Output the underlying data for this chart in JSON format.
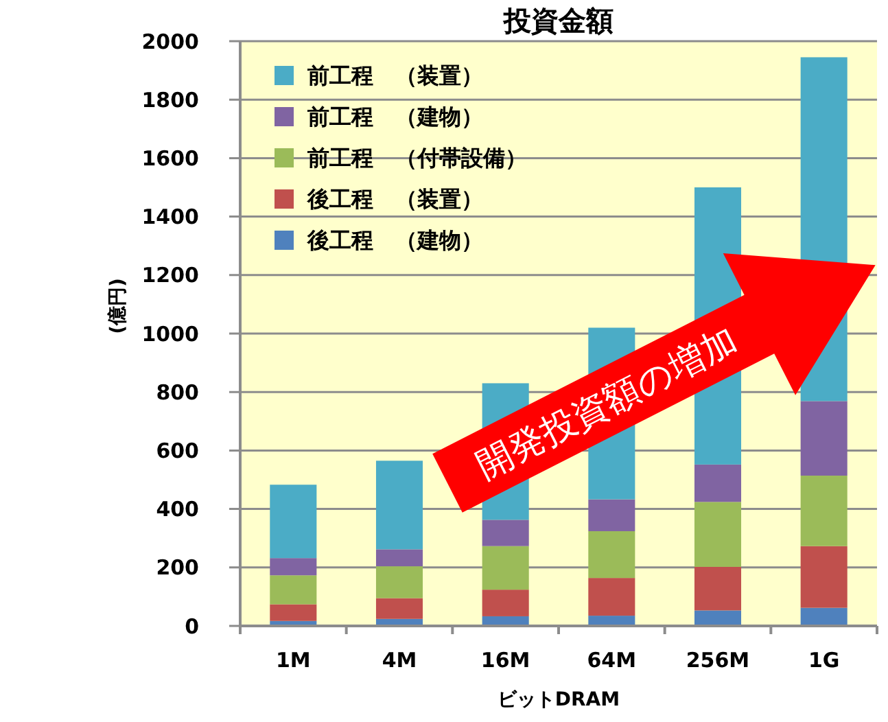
{
  "chart_data": {
    "type": "bar",
    "stacked": true,
    "title": "投資金額",
    "xlabel": "ビットDRAM",
    "ylabel": "(億円)",
    "categories": [
      "1M",
      "4M",
      "16M",
      "64M",
      "256M",
      "1G"
    ],
    "series": [
      {
        "name": "後工程　（建物）",
        "color": "#4f81bd",
        "values": [
          17,
          24,
          33,
          35,
          53,
          62
        ]
      },
      {
        "name": "後工程　（装置）",
        "color": "#c0504d",
        "values": [
          57,
          71,
          91,
          129,
          149,
          211
        ]
      },
      {
        "name": "前工程　（付帯設備）",
        "color": "#9bbb59",
        "values": [
          99,
          109,
          149,
          160,
          222,
          241
        ]
      },
      {
        "name": "前工程　（建物）",
        "color": "#8064a2",
        "values": [
          59,
          58,
          90,
          109,
          128,
          255
        ]
      },
      {
        "name": "前工程　（装置）",
        "color": "#4bacc6",
        "values": [
          251,
          303,
          467,
          587,
          948,
          1176
        ]
      }
    ],
    "ylim": [
      0,
      2000
    ],
    "yticks": [
      0,
      200,
      400,
      600,
      800,
      1000,
      1200,
      1400,
      1600,
      1800,
      2000
    ],
    "grid": "y",
    "legend": "top left",
    "annotations": [
      "開発投資額の増加"
    ]
  }
}
